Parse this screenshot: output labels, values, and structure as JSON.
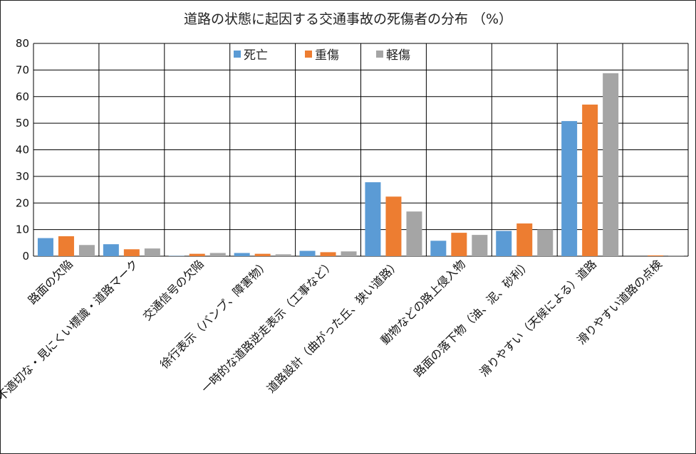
{
  "chart_data": {
    "type": "bar",
    "title": "道路の状態に起因する交通事故の死傷者の分布 （%）",
    "categories": [
      "路面の欠陥",
      "不適切な・見にくい標識・道路マーク",
      "交通信号の欠陥",
      "徐行表示（バンプ、障害物）",
      "一時的な道路逆走表示（工事など）",
      "道路設計（曲がった丘、狭い道路）",
      "動物などの路上侵入物",
      "路面の落下物（油、泥、砂利）",
      "滑りやすい（天候による）道路",
      "滑りやすい道路の点検"
    ],
    "series": [
      {
        "name": "死亡",
        "color": "#5b9bd5",
        "values": [
          6.8,
          4.5,
          0.1,
          1.2,
          2.0,
          27.8,
          5.8,
          9.5,
          50.8,
          0.0
        ]
      },
      {
        "name": "重傷",
        "color": "#ed7d31",
        "values": [
          7.5,
          2.6,
          0.9,
          0.9,
          1.5,
          22.4,
          8.8,
          12.3,
          57.0,
          0.3
        ]
      },
      {
        "name": "軽傷",
        "color": "#a5a5a5",
        "values": [
          4.2,
          2.9,
          1.2,
          0.7,
          1.8,
          16.8,
          8.0,
          10.0,
          68.8,
          0.3
        ]
      }
    ],
    "ylim": [
      0,
      80
    ],
    "yticks": [
      0,
      10,
      20,
      30,
      40,
      50,
      60,
      70,
      80
    ],
    "grid": true,
    "legend": "top-center"
  }
}
